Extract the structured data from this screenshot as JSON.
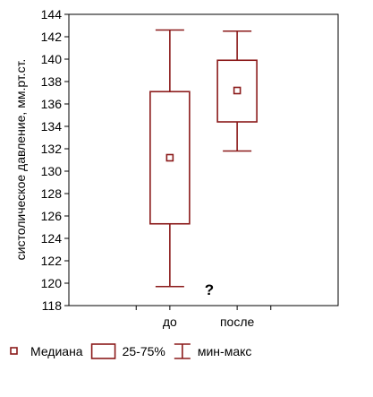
{
  "chart_data": {
    "type": "boxplot",
    "title": "",
    "xlabel": "",
    "ylabel": "систолическое давление, мм.рт.ст.",
    "ylim": [
      118,
      144
    ],
    "yticks": [
      118,
      120,
      122,
      124,
      126,
      128,
      130,
      132,
      134,
      136,
      138,
      140,
      142,
      144
    ],
    "grid": false,
    "categories": [
      "до",
      "после"
    ],
    "boxes": [
      {
        "category": "до",
        "min": 119.7,
        "q1": 125.3,
        "median": 131.2,
        "q3": 137.1,
        "max": 142.6
      },
      {
        "category": "после",
        "min": 131.8,
        "q1": 134.4,
        "median": 137.2,
        "q3": 139.9,
        "max": 142.5
      }
    ],
    "annotation": "?",
    "legend": {
      "position": "bottom",
      "items": [
        {
          "label": "Медиана",
          "kind": "median"
        },
        {
          "label": "25-75%",
          "kind": "box"
        },
        {
          "label": "мин-макс",
          "kind": "whisker"
        }
      ]
    },
    "colors": {
      "series": "#8b1a1a",
      "axis": "#000000"
    }
  }
}
